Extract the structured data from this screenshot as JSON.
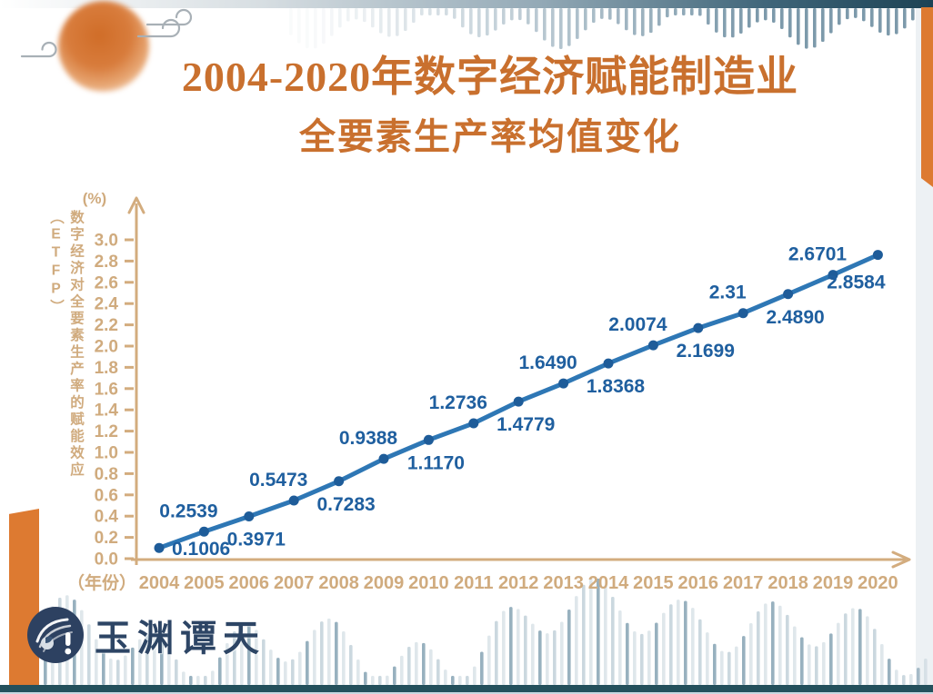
{
  "title": {
    "line1": "2004-2020年数字经济赋能制造业",
    "line2": "全要素生产率均值变化"
  },
  "brand": {
    "logo_text": "玉渊谭天"
  },
  "chart_data": {
    "type": "line",
    "title": "2004-2020年数字经济赋能制造业全要素生产率均值变化",
    "x": [
      2004,
      2005,
      2006,
      2007,
      2008,
      2009,
      2010,
      2011,
      2012,
      2013,
      2014,
      2015,
      2016,
      2017,
      2018,
      2019,
      2020
    ],
    "series": [
      {
        "name": "数字经济对全要素生产率的赋能效应（ETFP）",
        "values": [
          0.1006,
          0.2539,
          0.3971,
          0.5473,
          0.7283,
          0.9388,
          1.117,
          1.2736,
          1.4779,
          1.649,
          1.8368,
          2.0074,
          2.1699,
          2.31,
          2.489,
          2.6701,
          2.8584
        ]
      }
    ],
    "point_labels": [
      "0.1006",
      "0.2539",
      "0.3971",
      "0.5473",
      "0.7283",
      "0.9388",
      "1.1170",
      "1.2736",
      "1.4779",
      "1.6490",
      "1.8368",
      "2.0074",
      "2.1699",
      "2.31",
      "2.4890",
      "2.6701",
      "2.8584"
    ],
    "label_positions": [
      "right",
      "above",
      "below",
      "above",
      "below",
      "above",
      "below",
      "above",
      "below",
      "above",
      "below",
      "above",
      "below",
      "above",
      "below",
      "above",
      "below-left"
    ],
    "ylabel": "数字经济对全要素生产率的赋能效应（ETFP）",
    "y_unit_label": "(%)",
    "xlabel": "（年份）",
    "y_ticks": [
      "0.0",
      "0.2",
      "0.4",
      "0.6",
      "0.8",
      "1.0",
      "1.2",
      "1.4",
      "1.6",
      "1.8",
      "2.0",
      "2.2",
      "2.4",
      "2.6",
      "2.8",
      "3.0"
    ],
    "ylim": [
      0.0,
      3.0
    ],
    "grid": false,
    "legend": "none",
    "colors": {
      "line": "#2e77b5",
      "point": "#1e5c99",
      "point_label": "#1f5f9f",
      "axis": "#d3ac7e",
      "tick_label": "#d0ab7e",
      "title": "#c9702e",
      "accent_orange": "#dd7a31",
      "brand_navy": "#2d4565"
    }
  }
}
